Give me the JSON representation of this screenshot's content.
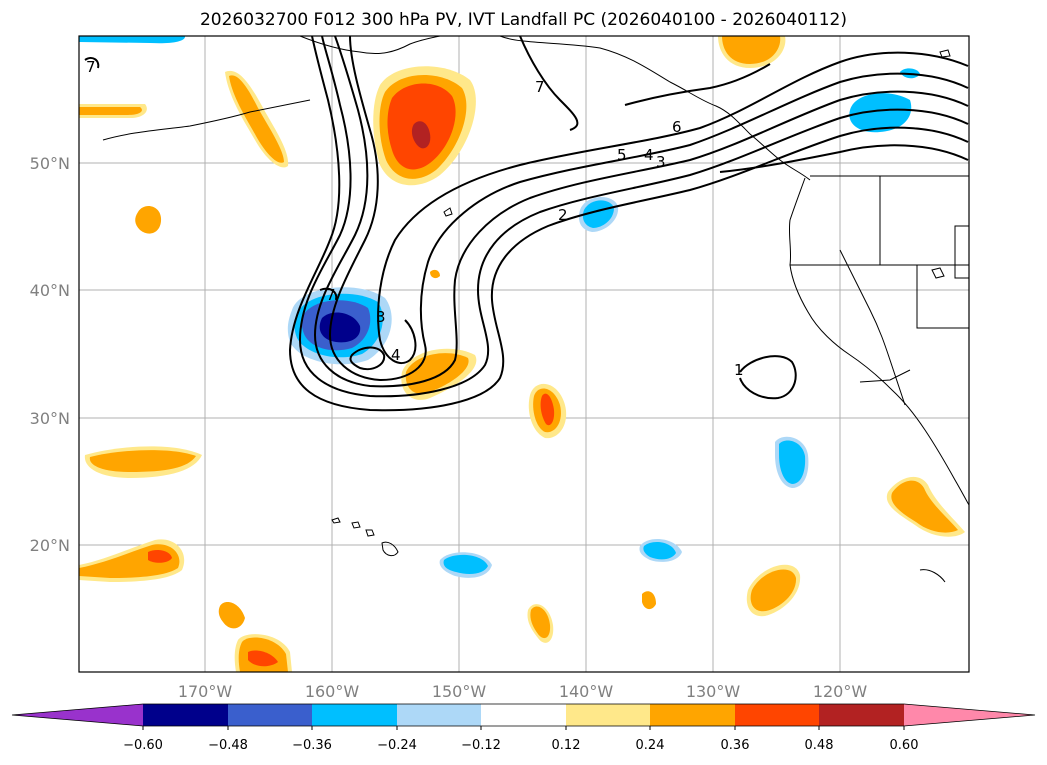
{
  "title": "2026032700 F012 300 hPa PV, IVT Landfall PC (2026040100 - 2026040112)",
  "axes": {
    "lat_labels": [
      "50°N",
      "40°N",
      "30°N",
      "20°N"
    ],
    "lon_labels": [
      "170°W",
      "160°W",
      "150°W",
      "140°W",
      "130°W",
      "120°W"
    ]
  },
  "colorbar": {
    "labels": [
      "−0.60",
      "−0.48",
      "−0.36",
      "−0.24",
      "−0.12",
      "0.12",
      "0.24",
      "0.36",
      "0.48",
      "0.60"
    ],
    "colors": [
      "#9932cc",
      "#00008b",
      "#3a5fcd",
      "#00bfff",
      "#add8f7",
      "#ffffff",
      "#ffe88a",
      "#ffa500",
      "#ff4500",
      "#b22222",
      "#ff88aa"
    ]
  },
  "contour_labels": [
    "7",
    "7",
    "6",
    "5",
    "4",
    "3",
    "2",
    "3",
    "4",
    "7",
    "1"
  ]
}
